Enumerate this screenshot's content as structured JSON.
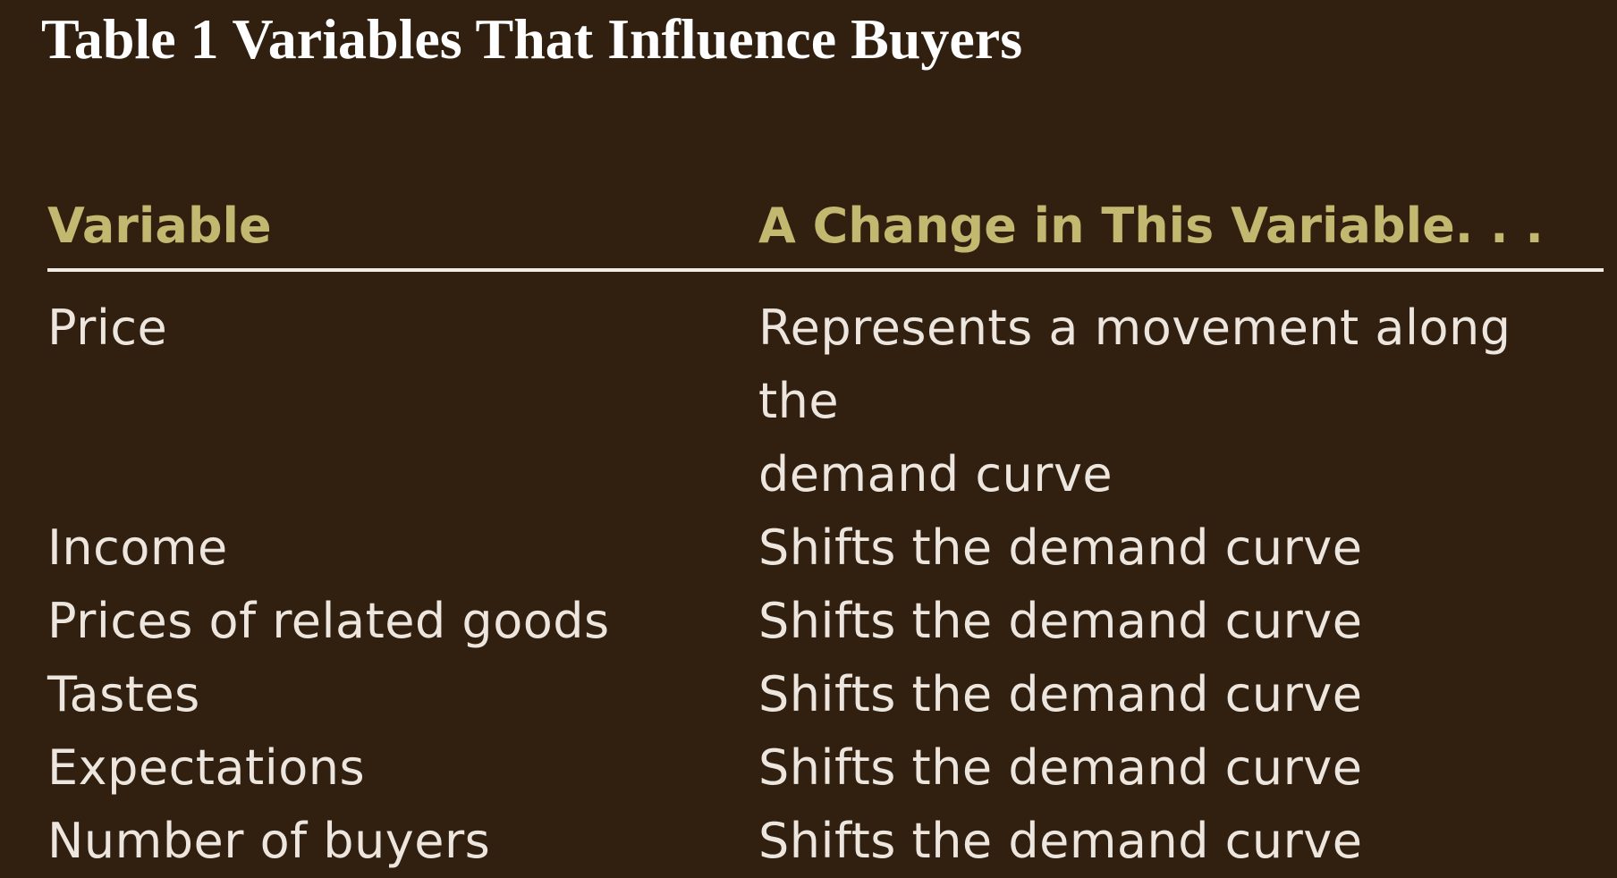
{
  "title": "Table 1 Variables That Influence Buyers",
  "table": {
    "headers": {
      "variable": "Variable",
      "change": "A Change in This Variable. . ."
    },
    "rows": [
      {
        "variable": "Price",
        "change_line1": "Represents a movement along the",
        "change_line2": "demand curve"
      },
      {
        "variable": "Income",
        "change": "Shifts the demand curve"
      },
      {
        "variable": "Prices of related goods",
        "change": "Shifts the demand curve"
      },
      {
        "variable": "Tastes",
        "change": "Shifts the demand curve"
      },
      {
        "variable": "Expectations",
        "change": "Shifts the demand curve"
      },
      {
        "variable": "Number of buyers",
        "change": "Shifts the demand curve"
      }
    ]
  },
  "colors": {
    "background": "#311f0f",
    "title": "#ffffff",
    "header_text": "#c3b86f",
    "body_text": "#ece6de",
    "rule": "#f1ebe3"
  }
}
